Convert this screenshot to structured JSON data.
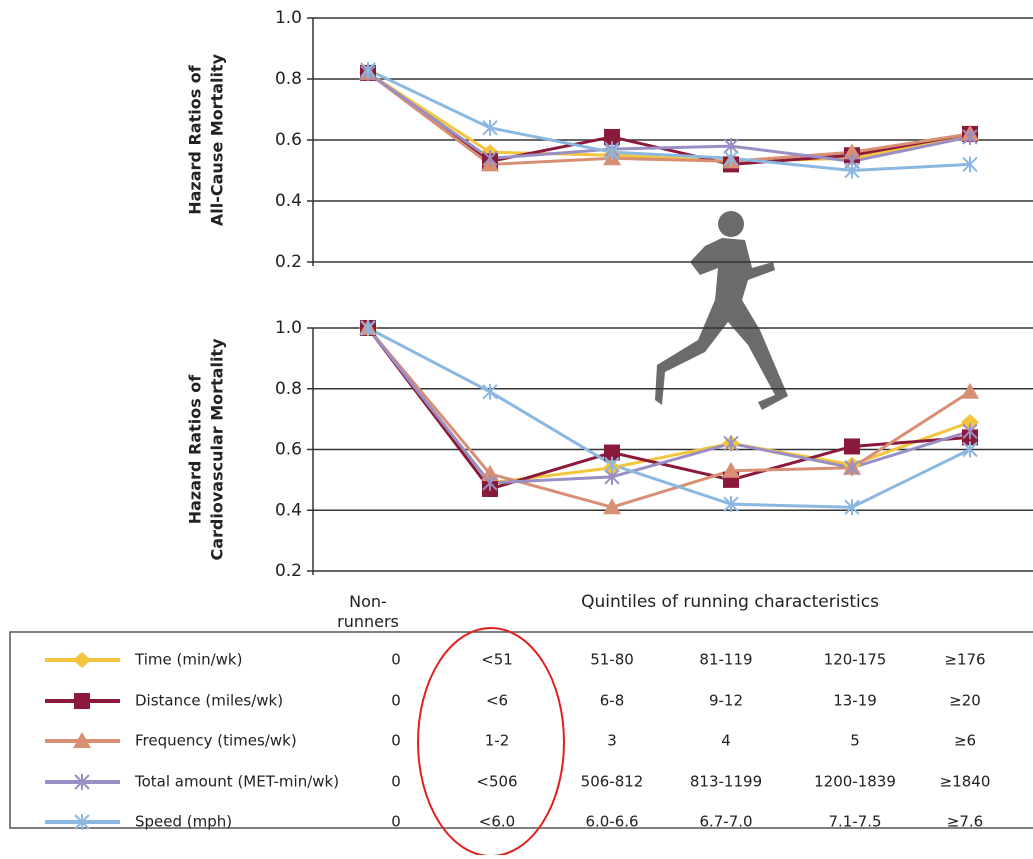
{
  "chart_data": [
    {
      "type": "line",
      "ylabel_lines": [
        "Hazard Ratios of",
        "All-Cause Mortality"
      ],
      "ylim": [
        0.2,
        1.0
      ],
      "yticks": [
        {
          "value": 1,
          "label": "1.0"
        },
        0.8,
        0.6,
        0.4,
        0.2
      ],
      "grid": true,
      "series": [
        {
          "name": "Time (min/wk)",
          "color": "#f2c53d",
          "marker": "diamond",
          "values": [
            0.82,
            0.56,
            0.55,
            0.53,
            0.54,
            0.62
          ]
        },
        {
          "name": "Distance (miles/wk)",
          "color": "#8b1a3a",
          "marker": "square",
          "values": [
            0.82,
            0.53,
            0.61,
            0.52,
            0.55,
            0.62
          ]
        },
        {
          "name": "Frequency (times/wk)",
          "color": "#d98f73",
          "marker": "triangle",
          "values": [
            0.82,
            0.52,
            0.54,
            0.53,
            0.56,
            0.62
          ]
        },
        {
          "name": "Total amount (MET-min/wk)",
          "color": "#9a8fc4",
          "marker": "asterisk",
          "values": [
            0.82,
            0.54,
            0.57,
            0.58,
            0.53,
            0.61
          ]
        },
        {
          "name": "Speed (mph)",
          "color": "#8ab8e0",
          "marker": "asterisk",
          "values": [
            0.83,
            0.64,
            0.56,
            0.54,
            0.5,
            0.52
          ]
        }
      ]
    },
    {
      "type": "line",
      "ylabel_lines": [
        "Hazard Ratios of",
        "Cardiovascular Mortality"
      ],
      "categories": [
        "Non-runners",
        null,
        null,
        null,
        null,
        null
      ],
      "xlabel": "Quintiles of running characteristics",
      "ylim": [
        0.2,
        1.0
      ],
      "yticks": [
        {
          "value": 1,
          "label": "1.0"
        },
        0.8,
        0.6,
        0.4,
        0.2
      ],
      "grid": true,
      "series": [
        {
          "values": [
            1.0,
            0.49,
            0.54,
            0.62,
            0.55,
            0.69
          ]
        },
        {
          "values": [
            1.0,
            0.47,
            0.59,
            0.5,
            0.61,
            0.64
          ]
        },
        {
          "values": [
            1.0,
            0.52,
            0.41,
            0.53,
            0.54,
            0.79
          ]
        },
        {
          "values": [
            1.0,
            0.49,
            0.51,
            0.62,
            0.54,
            0.66
          ]
        },
        {
          "values": [
            1.0,
            0.79,
            0.55,
            0.42,
            0.41,
            0.6
          ]
        }
      ]
    }
  ],
  "table": {
    "rows": [
      [
        "0",
        "<51",
        "51-80",
        "81-119",
        "120-175",
        "≥176"
      ],
      [
        "0",
        "<6",
        "6-8",
        "9-12",
        "13-19",
        "≥20"
      ],
      [
        "0",
        "1-2",
        "3",
        "4",
        "5",
        "≥6"
      ],
      [
        "0",
        "<506",
        "506-812",
        "813-1199",
        "1200-1839",
        "≥1840"
      ],
      [
        "0",
        "<6.0",
        "6.0-6.6",
        "6.7-7.0",
        "7.1-7.5",
        "≥7.6"
      ]
    ]
  }
}
